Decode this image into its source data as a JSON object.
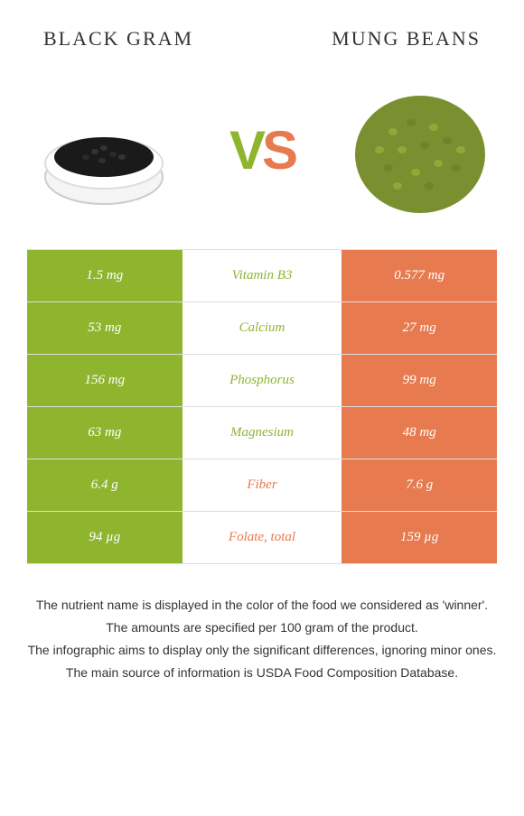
{
  "header": {
    "left_title": "BLACK GRAM",
    "right_title": "MUNG BEANS",
    "title_fontsize": "22px",
    "title_color": "#333333"
  },
  "colors": {
    "left": "#8fb52f",
    "right": "#e77a4f",
    "vs_v": "#8fb52f",
    "vs_s": "#e77a4f",
    "bg": "#ffffff",
    "border": "#dddddd",
    "text_white": "#ffffff",
    "footer_text": "#333333"
  },
  "vs_fontsize": "60px",
  "images": {
    "left_alt": "bowl of black gram",
    "right_alt": "mung beans in bowl"
  },
  "rows": [
    {
      "left": "1.5 mg",
      "label": "Vitamin B3",
      "right": "0.577 mg",
      "winner": "left"
    },
    {
      "left": "53 mg",
      "label": "Calcium",
      "right": "27 mg",
      "winner": "left"
    },
    {
      "left": "156 mg",
      "label": "Phosphorus",
      "right": "99 mg",
      "winner": "left"
    },
    {
      "left": "63 mg",
      "label": "Magnesium",
      "right": "48 mg",
      "winner": "left"
    },
    {
      "left": "6.4 g",
      "label": "Fiber",
      "right": "7.6 g",
      "winner": "right"
    },
    {
      "left": "94 µg",
      "label": "Folate, total",
      "right": "159 µg",
      "winner": "right"
    }
  ],
  "footer": {
    "lines": [
      "The nutrient name is displayed in the color of the food we considered as 'winner'.",
      "The amounts are specified per 100 gram of the product.",
      "The infographic aims to display only the significant differences, ignoring minor ones.",
      "The main source of information is USDA Food Composition Database."
    ],
    "fontsize": "14px"
  },
  "image_size": {
    "w": 160,
    "h": 160
  }
}
